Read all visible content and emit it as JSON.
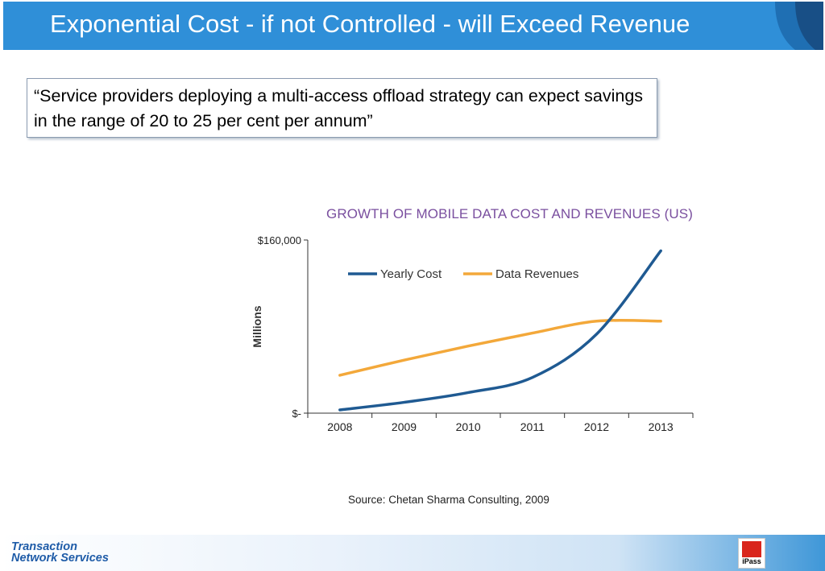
{
  "slide": {
    "title": "Exponential Cost - if not Controlled - will Exceed Revenue",
    "quote": "“Service providers deploying a multi-access offload strategy can expect savings in the range of 20 to 25 per cent per annum”",
    "source": "Source: Chetan Sharma Consulting, 2009"
  },
  "footer": {
    "logo_line1": "Transaction",
    "logo_line2": "Network Services",
    "ipass_label": "iPass"
  },
  "chart_data": {
    "type": "line",
    "title": "GROWTH OF MOBILE DATA COST AND REVENUES (US)",
    "ylabel": "Millions",
    "xlabel": "",
    "x": [
      2008,
      2009,
      2010,
      2011,
      2012,
      2013
    ],
    "categories": [
      "2008",
      "2009",
      "2010",
      "2011",
      "2012",
      "2013"
    ],
    "yticks": [
      "$-",
      "$160,000"
    ],
    "ylim": [
      0,
      160000
    ],
    "legend_position": "top",
    "grid": false,
    "series": [
      {
        "name": "Yearly Cost",
        "color": "#1f5a92",
        "values": [
          3000,
          10000,
          19000,
          33000,
          73000,
          150000
        ]
      },
      {
        "name": "Data Revenues",
        "color": "#f3a83a",
        "values": [
          35000,
          49000,
          62000,
          74000,
          85000,
          85000
        ]
      }
    ]
  }
}
